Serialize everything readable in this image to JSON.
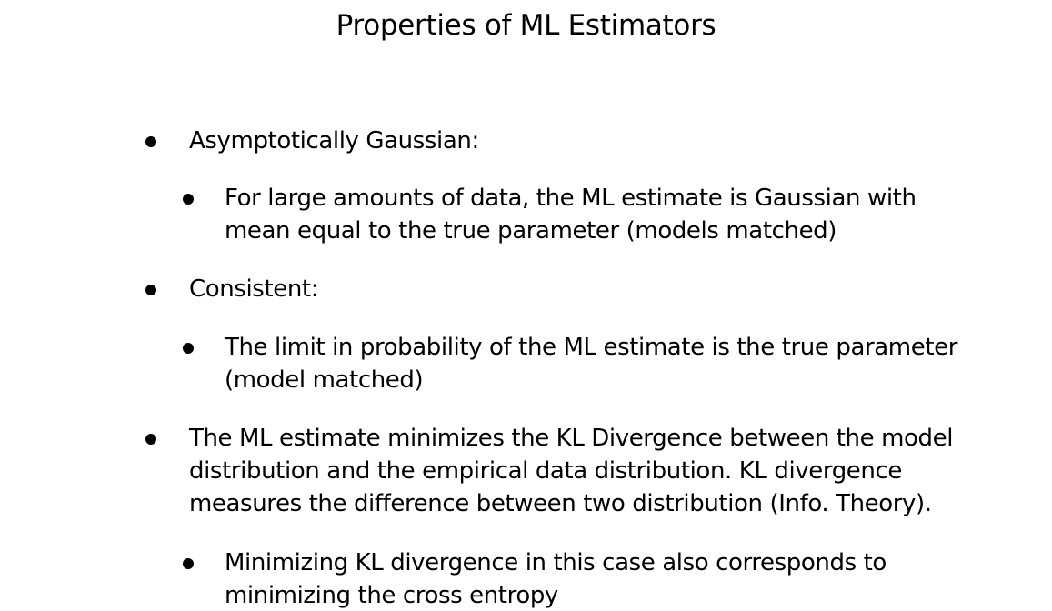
{
  "slide": {
    "title": "Properties of ML Estimators",
    "bullets": [
      {
        "level": 1,
        "lines": [
          "Asymptotically Gaussian:"
        ]
      },
      {
        "level": 2,
        "lines": [
          "For large amounts of data, the ML estimate is Gaussian with",
          "mean equal to the true parameter (models matched)"
        ]
      },
      {
        "level": 1,
        "lines": [
          "Consistent:"
        ]
      },
      {
        "level": 2,
        "lines": [
          "The limit in probability of the ML estimate is the true parameter",
          "(model matched)"
        ]
      },
      {
        "level": 1,
        "lines": [
          "The ML estimate minimizes the KL Divergence between the model",
          "distribution and the empirical data distribution.  KL divergence",
          "measures the difference between two distribution (Info. Theory)."
        ]
      },
      {
        "level": 2,
        "lines": [
          "Minimizing KL divergence in this case also corresponds to",
          "minimizing the cross entropy"
        ]
      }
    ]
  }
}
